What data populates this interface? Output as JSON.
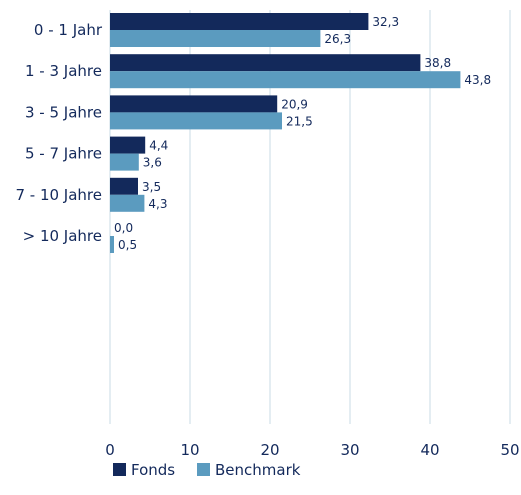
{
  "chart_data": {
    "type": "bar",
    "orientation": "horizontal",
    "categories": [
      "0 - 1 Jahr",
      "1 - 3 Jahre",
      "3 - 5 Jahre",
      "5 - 7 Jahre",
      "7 - 10 Jahre",
      "> 10 Jahre"
    ],
    "series": [
      {
        "name": "Fonds",
        "values": [
          32.3,
          38.8,
          20.9,
          4.4,
          3.5,
          0.0
        ],
        "labels": [
          "32,3",
          "38,8",
          "20,9",
          "4,4",
          "3,5",
          "0,0"
        ],
        "color": "#13295b"
      },
      {
        "name": "Benchmark",
        "values": [
          26.3,
          43.8,
          21.5,
          3.6,
          4.3,
          0.5
        ],
        "labels": [
          "26,3",
          "43,8",
          "21,5",
          "3,6",
          "4,3",
          "0,5"
        ],
        "color": "#5b9bbf"
      }
    ],
    "xlim": [
      0,
      50
    ],
    "xticks": [
      0,
      10,
      20,
      30,
      40,
      50
    ],
    "grid": true,
    "legend_position": "bottom-left",
    "colors": {
      "text": "#13295b",
      "grid": "#c9dbe6"
    }
  }
}
